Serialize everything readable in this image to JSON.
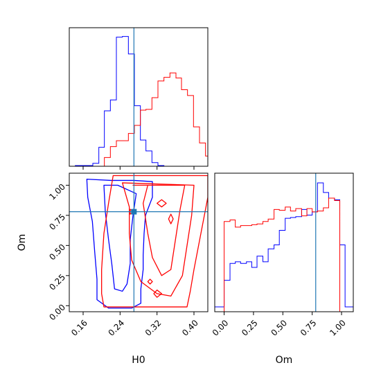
{
  "chart_data": [
    {
      "type": "histogram",
      "panel": "H0 marginal",
      "x_range": [
        0.13,
        0.43
      ],
      "truth": 0.27,
      "series": [
        {
          "color": "#0000ff",
          "bins": [
            [
              0.13,
              0
            ],
            [
              0.143,
              1
            ],
            [
              0.155,
              1
            ],
            [
              0.168,
              1
            ],
            [
              0.181,
              4
            ],
            [
              0.194,
              26
            ],
            [
              0.206,
              76
            ],
            [
              0.219,
              91
            ],
            [
              0.232,
              177
            ],
            [
              0.245,
              178
            ],
            [
              0.258,
              154
            ],
            [
              0.271,
              83
            ],
            [
              0.284,
              36
            ],
            [
              0.296,
              21
            ],
            [
              0.309,
              5
            ],
            [
              0.322,
              1
            ],
            [
              0.335,
              0
            ]
          ]
        },
        {
          "color": "#ff0000",
          "bins": [
            [
              0.206,
              12
            ],
            [
              0.219,
              27
            ],
            [
              0.232,
              35
            ],
            [
              0.245,
              35
            ],
            [
              0.258,
              45
            ],
            [
              0.271,
              56
            ],
            [
              0.284,
              77
            ],
            [
              0.296,
              78
            ],
            [
              0.309,
              94
            ],
            [
              0.322,
              117
            ],
            [
              0.335,
              122
            ],
            [
              0.348,
              128
            ],
            [
              0.361,
              121
            ],
            [
              0.373,
              105
            ],
            [
              0.386,
              97
            ],
            [
              0.399,
              54
            ],
            [
              0.412,
              32
            ],
            [
              0.425,
              14
            ]
          ]
        }
      ]
    },
    {
      "type": "contour",
      "panel": "H0 vs Om",
      "xlabel": "H0",
      "ylabel": "Om",
      "x_range": [
        0.13,
        0.43
      ],
      "y_range": [
        -0.05,
        1.1
      ],
      "x_ticks": [
        0.16,
        0.24,
        0.32,
        0.4
      ],
      "x_tick_labels": [
        "0.16",
        "0.24",
        "0.32",
        "0.40"
      ],
      "y_ticks": [
        0.0,
        0.25,
        0.5,
        0.75,
        1.0
      ],
      "y_tick_labels": [
        "0.00",
        "0.25",
        "0.50",
        "0.75",
        "1.00"
      ],
      "truth": [
        0.27,
        0.78
      ],
      "contours": [
        {
          "color": "#0000ff",
          "points": [
            [
              0.168,
              1.05
            ],
            [
              0.22,
              1.04
            ],
            [
              0.27,
              1.04
            ],
            [
              0.31,
              1.03
            ],
            [
              0.31,
              0.9
            ],
            [
              0.295,
              0.75
            ],
            [
              0.292,
              0.6
            ],
            [
              0.29,
              0.42
            ],
            [
              0.29,
              0.3
            ],
            [
              0.285,
              0.14
            ],
            [
              0.285,
              0.02
            ],
            [
              0.265,
              -0.02
            ],
            [
              0.215,
              -0.02
            ],
            [
              0.19,
              0.05
            ],
            [
              0.19,
              0.22
            ],
            [
              0.185,
              0.45
            ],
            [
              0.18,
              0.7
            ],
            [
              0.17,
              0.9
            ],
            [
              0.168,
              1.05
            ]
          ]
        },
        {
          "color": "#0000ff",
          "points": [
            [
              0.205,
              1.0
            ],
            [
              0.235,
              1.0
            ],
            [
              0.275,
              0.93
            ],
            [
              0.268,
              0.75
            ],
            [
              0.262,
              0.55
            ],
            [
              0.262,
              0.35
            ],
            [
              0.255,
              0.18
            ],
            [
              0.245,
              0.12
            ],
            [
              0.228,
              0.14
            ],
            [
              0.222,
              0.35
            ],
            [
              0.215,
              0.55
            ],
            [
              0.208,
              0.78
            ],
            [
              0.205,
              1.0
            ]
          ]
        },
        {
          "color": "#ff0000",
          "points": [
            [
              0.225,
              1.08
            ],
            [
              0.3,
              1.08
            ],
            [
              0.43,
              1.08
            ],
            [
              0.43,
              0.9
            ],
            [
              0.42,
              0.7
            ],
            [
              0.41,
              0.5
            ],
            [
              0.4,
              0.3
            ],
            [
              0.392,
              0.12
            ],
            [
              0.385,
              -0.01
            ],
            [
              0.29,
              -0.01
            ],
            [
              0.205,
              -0.01
            ],
            [
              0.2,
              0.1
            ],
            [
              0.2,
              0.3
            ],
            [
              0.205,
              0.6
            ],
            [
              0.215,
              0.85
            ],
            [
              0.225,
              1.08
            ]
          ]
        },
        {
          "color": "#ff0000",
          "points": [
            [
              0.245,
              1.02
            ],
            [
              0.26,
              0.82
            ],
            [
              0.26,
              0.6
            ],
            [
              0.265,
              0.38
            ],
            [
              0.285,
              0.2
            ],
            [
              0.32,
              0.1
            ],
            [
              0.35,
              0.08
            ],
            [
              0.375,
              0.25
            ],
            [
              0.385,
              0.5
            ],
            [
              0.395,
              0.75
            ],
            [
              0.4,
              1.0
            ],
            [
              0.245,
              1.02
            ]
          ]
        },
        {
          "color": "#ff0000",
          "points": [
            [
              0.268,
              1.0
            ],
            [
              0.3,
              1.0
            ],
            [
              0.29,
              0.85
            ],
            [
              0.3,
              0.6
            ],
            [
              0.31,
              0.4
            ],
            [
              0.33,
              0.25
            ],
            [
              0.35,
              0.3
            ],
            [
              0.36,
              0.55
            ],
            [
              0.37,
              0.8
            ],
            [
              0.38,
              1.0
            ],
            [
              0.268,
              1.0
            ]
          ]
        },
        {
          "color": "#ff0000",
          "points": [
            [
              0.262,
              0.8
            ],
            [
              0.27,
              0.78
            ],
            [
              0.262,
              0.76
            ],
            [
              0.262,
              0.8
            ]
          ]
        },
        {
          "color": "#ff0000",
          "points": [
            [
              0.313,
              0.1
            ],
            [
              0.32,
              0.13
            ],
            [
              0.33,
              0.1
            ],
            [
              0.32,
              0.07
            ],
            [
              0.313,
              0.1
            ]
          ]
        },
        {
          "color": "#ff0000",
          "points": [
            [
              0.3,
              0.2
            ],
            [
              0.305,
              0.22
            ],
            [
              0.31,
              0.2
            ],
            [
              0.305,
              0.18
            ],
            [
              0.3,
              0.2
            ]
          ]
        },
        {
          "color": "#ff0000",
          "points": [
            [
              0.345,
              0.72
            ],
            [
              0.35,
              0.76
            ],
            [
              0.355,
              0.72
            ],
            [
              0.35,
              0.68
            ],
            [
              0.345,
              0.72
            ]
          ]
        },
        {
          "color": "#ff0000",
          "points": [
            [
              0.32,
              0.85
            ],
            [
              0.33,
              0.88
            ],
            [
              0.34,
              0.85
            ],
            [
              0.33,
              0.82
            ],
            [
              0.32,
              0.85
            ]
          ]
        }
      ]
    },
    {
      "type": "histogram",
      "panel": "Om marginal",
      "xlabel": "Om",
      "x_range": [
        -0.08,
        1.1
      ],
      "x_ticks": [
        0.0,
        0.25,
        0.5,
        0.75,
        1.0
      ],
      "x_tick_labels": [
        "0.00",
        "0.25",
        "0.50",
        "0.75",
        "1.00"
      ],
      "truth": 0.78,
      "series": [
        {
          "color": "#0000ff",
          "bins": [
            [
              -0.08,
              6
            ],
            [
              0.0,
              39
            ],
            [
              0.05,
              60
            ],
            [
              0.095,
              62
            ],
            [
              0.14,
              60
            ],
            [
              0.19,
              62
            ],
            [
              0.235,
              55
            ],
            [
              0.28,
              69
            ],
            [
              0.33,
              62
            ],
            [
              0.375,
              78
            ],
            [
              0.425,
              83
            ],
            [
              0.47,
              101
            ],
            [
              0.52,
              116
            ],
            [
              0.565,
              117
            ],
            [
              0.61,
              118
            ],
            [
              0.66,
              127
            ],
            [
              0.705,
              120
            ],
            [
              0.75,
              124
            ],
            [
              0.795,
              160
            ],
            [
              0.845,
              148
            ],
            [
              0.89,
              141
            ],
            [
              0.94,
              139
            ],
            [
              0.985,
              83
            ],
            [
              1.03,
              6
            ],
            [
              1.1,
              6
            ]
          ]
        },
        {
          "color": "#ff0000",
          "bins": [
            [
              0.0,
              112
            ],
            [
              0.05,
              114
            ],
            [
              0.095,
              105
            ],
            [
              0.14,
              107
            ],
            [
              0.19,
              107
            ],
            [
              0.235,
              108
            ],
            [
              0.28,
              109
            ],
            [
              0.33,
              112
            ],
            [
              0.375,
              115
            ],
            [
              0.425,
              127
            ],
            [
              0.47,
              126
            ],
            [
              0.52,
              130
            ],
            [
              0.565,
              125
            ],
            [
              0.61,
              128
            ],
            [
              0.66,
              119
            ],
            [
              0.705,
              128
            ],
            [
              0.75,
              124
            ],
            [
              0.795,
              125
            ],
            [
              0.845,
              129
            ],
            [
              0.89,
              141
            ],
            [
              0.94,
              138
            ],
            [
              0.985,
              0
            ]
          ]
        }
      ]
    }
  ]
}
